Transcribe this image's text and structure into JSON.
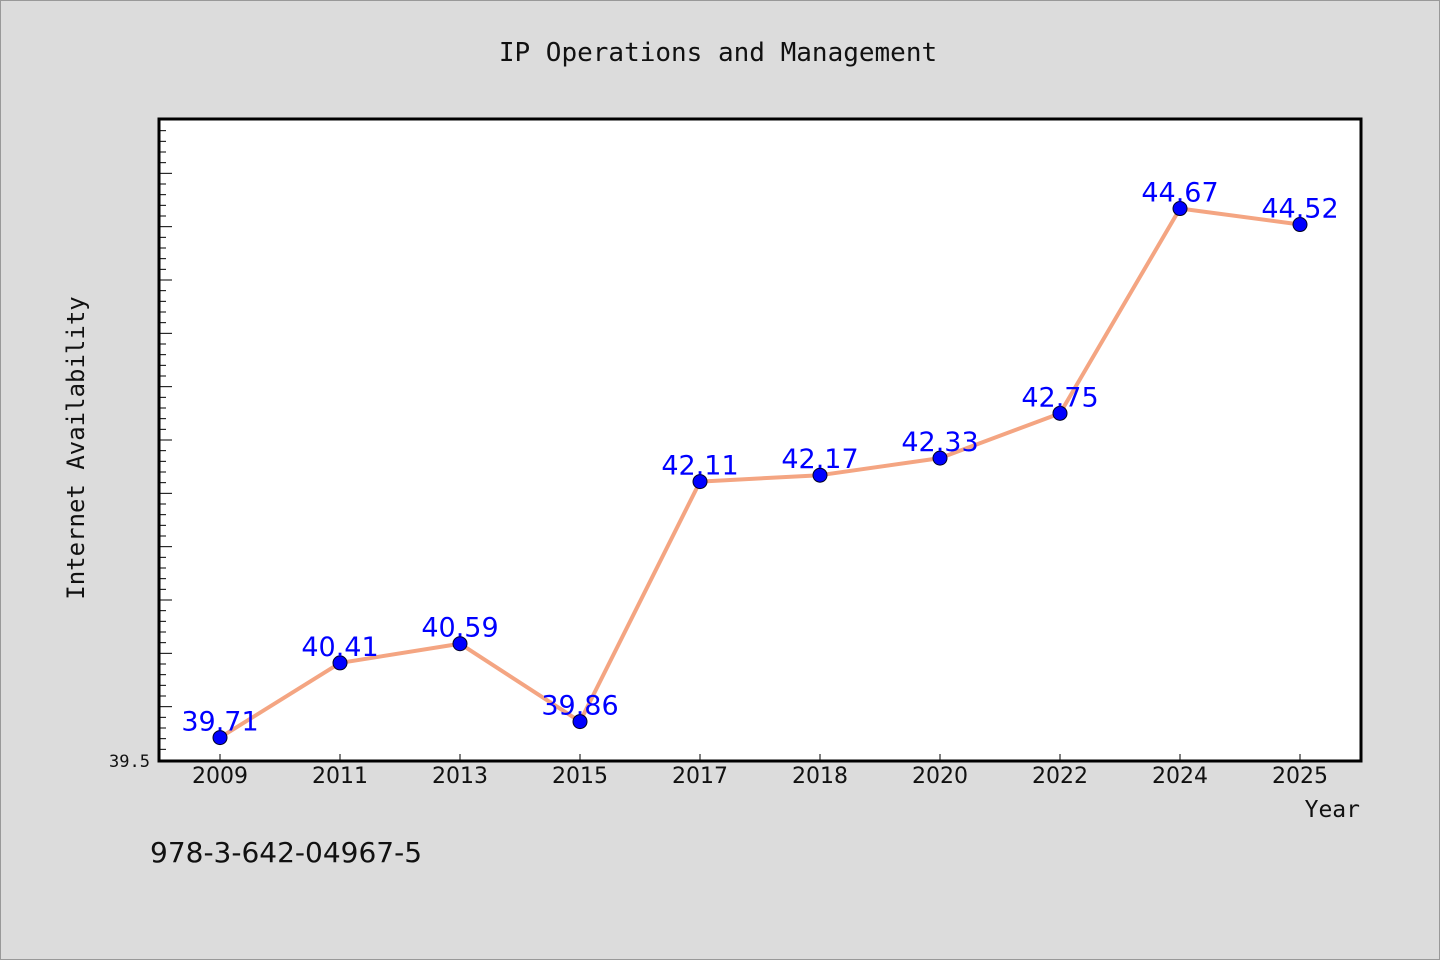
{
  "chart_data": {
    "type": "line",
    "title": "IP Operations and Management",
    "xlabel": "Year",
    "ylabel": "Internet Availability",
    "categories": [
      "2009",
      "2011",
      "2013",
      "2015",
      "2017",
      "2018",
      "2020",
      "2022",
      "2024",
      "2025"
    ],
    "series": [
      {
        "values": [
          39.71,
          40.41,
          40.59,
          39.86,
          42.11,
          42.17,
          42.33,
          42.75,
          44.67,
          44.52
        ]
      }
    ],
    "data_labels": [
      "39.71",
      "40.41",
      "40.59",
      "39.86",
      "42.11",
      "42.17",
      "42.33",
      "42.75",
      "44.67",
      "44.52"
    ],
    "y_tick_label": "39.5",
    "ylim": [
      39.5,
      45.5
    ],
    "grid": false,
    "line_color": "#f4a582",
    "marker_color": "#0000ff",
    "label_color": "#0000ff"
  },
  "footer": {
    "isbn": "978-3-642-04967-5"
  }
}
